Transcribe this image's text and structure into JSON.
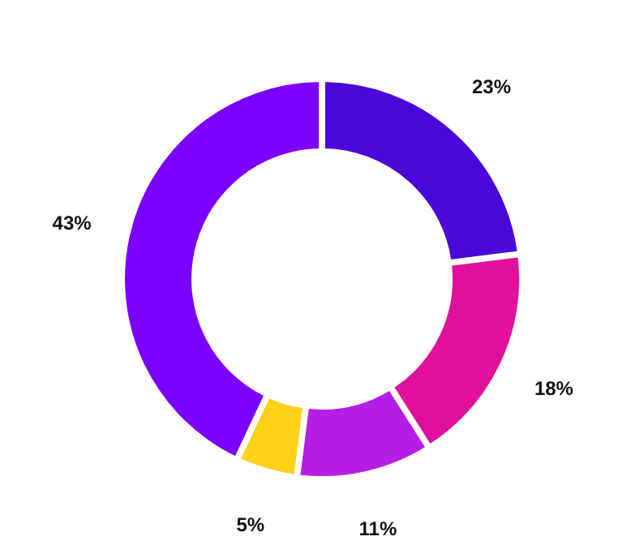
{
  "chart_data": {
    "type": "donut",
    "categories": [
      null,
      null,
      null,
      null,
      null
    ],
    "values": [
      23,
      18,
      11,
      5,
      43
    ],
    "colors": [
      "#4a08d8",
      "#e0109a",
      "#b41ee6",
      "#ffd21a",
      "#7b00ff"
    ],
    "value_labels": [
      "23%",
      "18%",
      "11%",
      "5%",
      "43%"
    ]
  }
}
